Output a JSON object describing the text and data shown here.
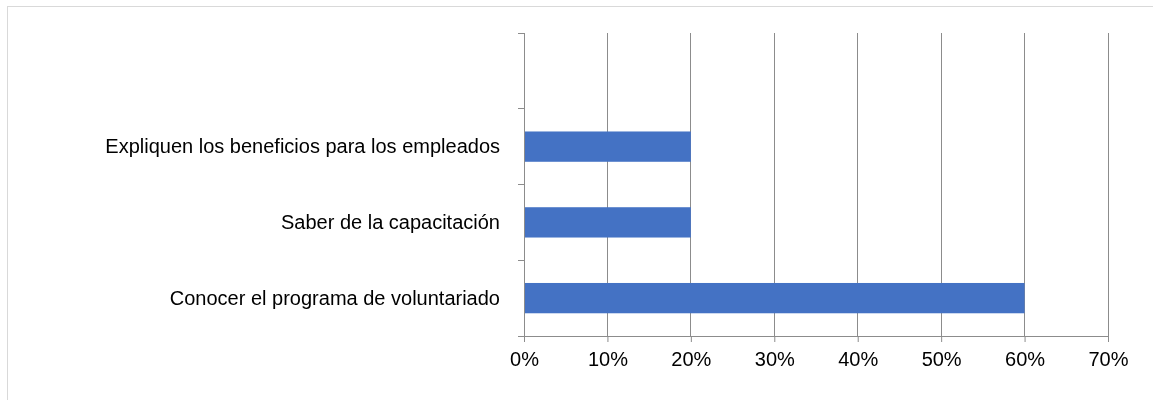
{
  "chart_data": {
    "type": "bar",
    "orientation": "horizontal",
    "categories": [
      null,
      "Expliquen los beneficios para los empleados",
      "Saber de la capacitación",
      "Conocer el programa de voluntariado"
    ],
    "values": [
      null,
      20,
      20,
      60
    ],
    "color": "#4472c4",
    "xlim": [
      0,
      70
    ],
    "xticks": [
      {
        "value": 0,
        "label": "0%"
      },
      {
        "value": 10,
        "label": "10%"
      },
      {
        "value": 20,
        "label": "20%"
      },
      {
        "value": 30,
        "label": "30%"
      },
      {
        "value": 40,
        "label": "40%"
      },
      {
        "value": 50,
        "label": "50%"
      },
      {
        "value": 60,
        "label": "60%"
      },
      {
        "value": 70,
        "label": "70%"
      }
    ],
    "grid": "x"
  }
}
